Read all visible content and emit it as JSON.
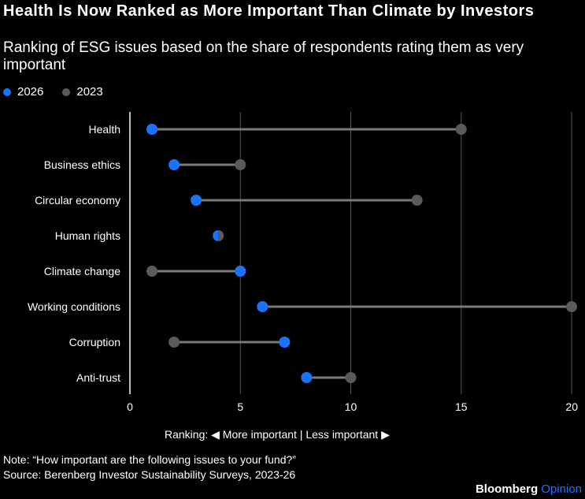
{
  "header": {
    "title": "Health Is Now Ranked as More Important Than Climate by Investors",
    "subtitle": "Ranking of ESG issues based on the share of respondents rating them as very important"
  },
  "colors": {
    "series_2026": "#1a73ff",
    "series_2023": "#5a5a5a",
    "connector": "#7a7a7a",
    "gridline": "#555555",
    "background": "#000000",
    "text": "#ffffff"
  },
  "chart_data": {
    "type": "dumbbell",
    "title": "Health Is Now Ranked as More Important Than Climate by Investors",
    "subtitle": "Ranking of ESG issues based on the share of respondents rating them as very important",
    "xlabel": "Ranking: ◀ More important | Less important ▶",
    "ylabel": "",
    "xlim": [
      0,
      20
    ],
    "xticks": [
      0,
      5,
      10,
      15,
      20
    ],
    "grid": true,
    "legend_position": "top-left",
    "categories": [
      "Health",
      "Business ethics",
      "Circular economy",
      "Human rights",
      "Climate change",
      "Working conditions",
      "Corruption",
      "Anti-trust"
    ],
    "series": [
      {
        "name": "2026",
        "values": [
          1,
          2,
          3,
          4,
          5,
          6,
          7,
          8
        ]
      },
      {
        "name": "2023",
        "values": [
          15,
          5,
          13,
          4,
          1,
          20,
          2,
          10
        ]
      }
    ]
  },
  "legend": {
    "items": [
      {
        "label": "2026"
      },
      {
        "label": "2023"
      }
    ]
  },
  "footer": {
    "axis_note": "Ranking: ◀ More important | Less important ▶",
    "note": "Note: “How important are the following issues to your fund?”",
    "source": "Source: Berenberg Investor Sustainability Surveys, 2023-26",
    "brand_main": "Bloomberg",
    "brand_sub": "Opinion"
  }
}
